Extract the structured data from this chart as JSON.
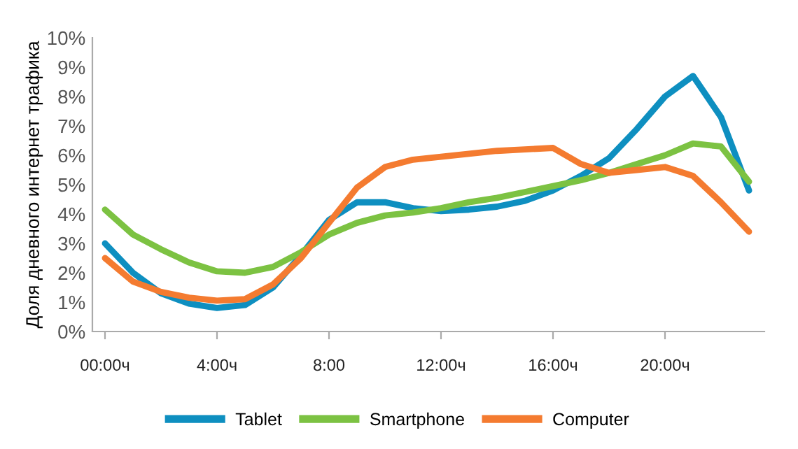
{
  "chart_data": {
    "type": "line",
    "ylabel": "Доля дневного интернет трафика",
    "categories": [
      "00:00ч",
      null,
      null,
      null,
      "4:00ч",
      null,
      null,
      null,
      "8:00",
      null,
      null,
      null,
      "12:00ч",
      null,
      null,
      null,
      "16:00ч",
      null,
      null,
      null,
      "20:00ч",
      null,
      null,
      null
    ],
    "ylim": [
      0,
      10
    ],
    "yticks": [
      {
        "value": 0,
        "label": "0%"
      },
      {
        "value": 1,
        "label": "1%"
      },
      {
        "value": 2,
        "label": "2%"
      },
      {
        "value": 3,
        "label": "3%"
      },
      {
        "value": 4,
        "label": "4%"
      },
      {
        "value": 5,
        "label": "5%"
      },
      {
        "value": 6,
        "label": "6%"
      },
      {
        "value": 7,
        "label": "7%"
      },
      {
        "value": 8,
        "label": "8%"
      },
      {
        "value": 9,
        "label": "9%"
      },
      {
        "value": 10,
        "label": "10%"
      }
    ],
    "grid": false,
    "legend": "bottom",
    "marker": "none",
    "line_style": "solid",
    "series": [
      {
        "name": "Tablet",
        "color": "#0e8fc0",
        "values": [
          3.0,
          2.0,
          1.3,
          0.95,
          0.8,
          0.9,
          1.5,
          2.6,
          3.8,
          4.4,
          4.4,
          4.2,
          4.1,
          4.15,
          4.25,
          4.45,
          4.8,
          5.3,
          5.9,
          6.9,
          8.0,
          8.7,
          7.3,
          4.8
        ]
      },
      {
        "name": "Smartphone",
        "color": "#7cc242",
        "values": [
          4.15,
          3.3,
          2.8,
          2.35,
          2.05,
          2.0,
          2.2,
          2.7,
          3.3,
          3.7,
          3.95,
          4.05,
          4.2,
          4.4,
          4.55,
          4.75,
          4.95,
          5.15,
          5.4,
          5.7,
          6.0,
          6.4,
          6.3,
          5.1
        ]
      },
      {
        "name": "Computer",
        "color": "#f47b30",
        "values": [
          2.5,
          1.7,
          1.35,
          1.15,
          1.05,
          1.1,
          1.6,
          2.5,
          3.7,
          4.9,
          5.6,
          5.85,
          5.95,
          6.05,
          6.15,
          6.2,
          6.25,
          5.7,
          5.4,
          5.5,
          5.6,
          5.3,
          4.4,
          3.4
        ]
      }
    ]
  }
}
